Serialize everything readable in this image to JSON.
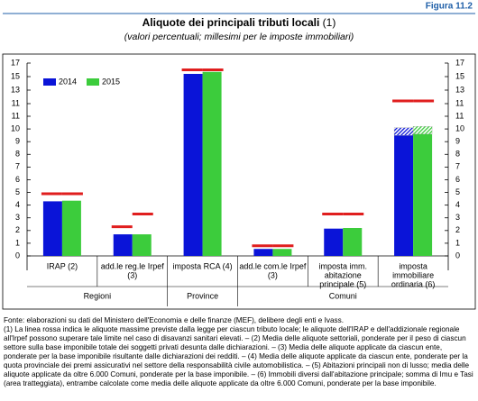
{
  "figure_label": "Figura 11.2",
  "chart_data": {
    "type": "bar",
    "title": "Aliquote dei principali tributi locali",
    "title_note": "(1)",
    "subtitle": "(valori percentuali; millesimi per le imposte immobiliari)",
    "categories": [
      [
        "IRAP (2)"
      ],
      [
        "add.le reg.le Irpef",
        "(3)"
      ],
      [
        "imposta RCA (4)"
      ],
      [
        "add.le com.le Irpef",
        "(3)"
      ],
      [
        "imposta imm.",
        "abitazione",
        "principale (5)"
      ],
      [
        "imposta",
        "immobiliare",
        "ordinaria (6)"
      ]
    ],
    "groups": [
      {
        "label": "Regioni",
        "size": 2
      },
      {
        "label": "Province",
        "size": 1
      },
      {
        "label": "Comuni",
        "size": 3
      }
    ],
    "series": [
      {
        "name": "2014",
        "color": "#0a14d8",
        "values": [
          4.3,
          1.7,
          15.4,
          0.55,
          2.15,
          9.5
        ],
        "hatched": [
          null,
          null,
          null,
          null,
          null,
          0.6
        ],
        "max": [
          4.9,
          2.3,
          16,
          0.8,
          3.3,
          11.4
        ]
      },
      {
        "name": "2015",
        "color": "#3ccc3c",
        "values": [
          4.35,
          1.7,
          15.7,
          0.55,
          2.2,
          9.6
        ],
        "hatched": [
          null,
          null,
          null,
          null,
          null,
          0.6
        ],
        "max": [
          4.9,
          3.3,
          16,
          0.8,
          3.3,
          11.4
        ]
      }
    ],
    "max_color": "#e01e1e",
    "y_segments": [
      {
        "ylim": [
          0,
          11
        ],
        "yticks": [
          0,
          1,
          2,
          3,
          4,
          5,
          6,
          7,
          8,
          9,
          10,
          11
        ]
      },
      {
        "ylim": [
          11,
          17
        ],
        "yticks": [
          11,
          13,
          15,
          17
        ]
      }
    ],
    "legend": "top-left"
  },
  "notes": {
    "source": "Fonte: elaborazioni su dati del Ministero dell'Economia e delle finanze (MEF), delibere degli enti e Ivass.",
    "text": "(1) La linea rossa indica le aliquote massime previste dalla legge per ciascun tributo locale; le aliquote dell'IRAP e dell'addizionale regionale all'Irpef possono superare tale limite nel caso di disavanzi sanitari elevati. – (2) Media delle aliquote settoriali, ponderate per il peso di ciascun settore sulla base imponibile totale dei soggetti privati desunta dalle dichiarazioni. – (3) Media delle aliquote applicate da ciascun ente, ponderate per la base imponibile risultante dalle dichiarazioni dei redditi. – (4) Media delle aliquote applicate da ciascun ente, ponderate per la quota provinciale dei premi assicurativi nel settore della responsabilità civile automobilistica. – (5) Abitazioni principali non di lusso; media delle aliquote applicate da oltre 6.000 Comuni, ponderate per la base imponibile. – (6) Immobili diversi dall'abitazione principale; somma di Imu e Tasi (area tratteggiata), entrambe calcolate come media delle aliquote applicate da oltre 6.000 Comuni, ponderate per la base imponibile."
  }
}
